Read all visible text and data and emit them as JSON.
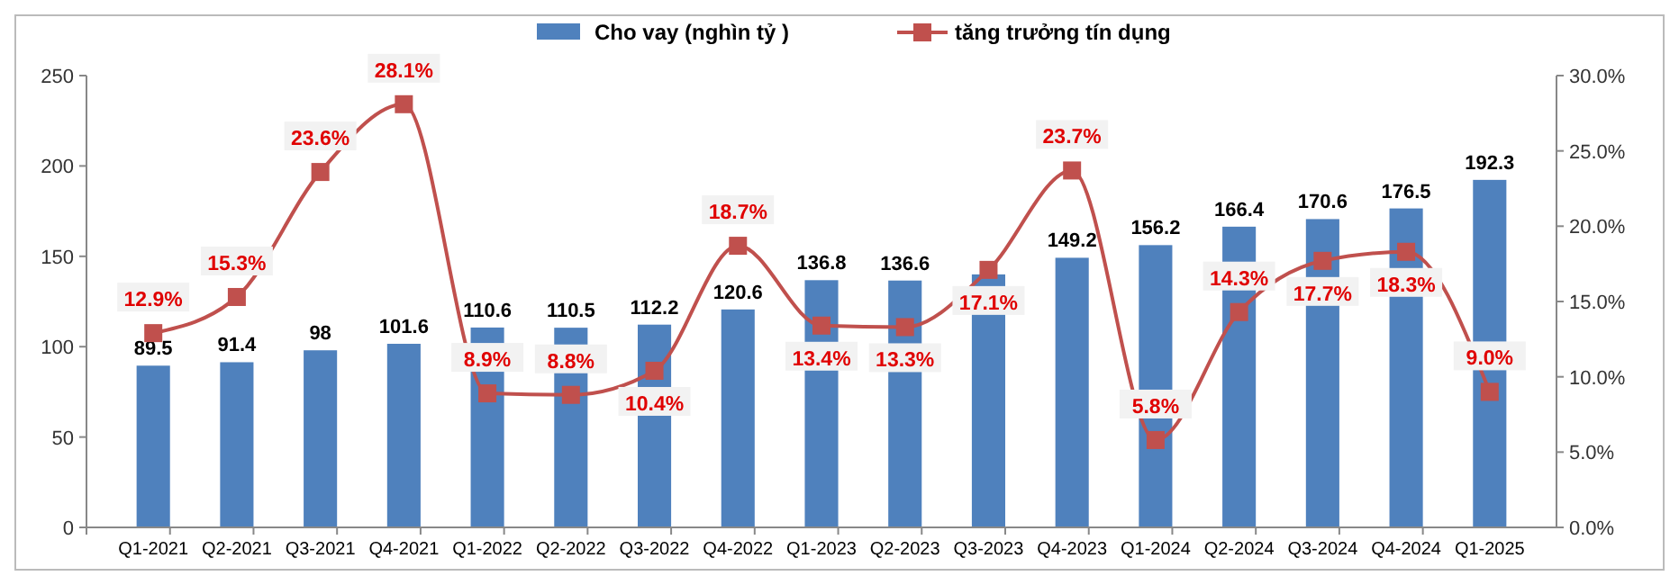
{
  "chart_data": {
    "type": "bar",
    "categories": [
      "Q1-2021",
      "Q2-2021",
      "Q3-2021",
      "Q4-2021",
      "Q1-2022",
      "Q2-2022",
      "Q3-2022",
      "Q4-2022",
      "Q1-2023",
      "Q2-2023",
      "Q3-2023",
      "Q4-2023",
      "Q1-2024",
      "Q2-2024",
      "Q3-2024",
      "Q4-2024",
      "Q1-2025"
    ],
    "series": [
      {
        "name": "Cho vay (nghìn tỷ )",
        "color": "#4f81bd",
        "values": [
          89.5,
          91.4,
          98,
          101.6,
          110.6,
          110.5,
          112.2,
          120.6,
          136.8,
          136.6,
          140,
          149.2,
          156.2,
          166.4,
          170.6,
          176.5,
          192.3
        ],
        "value_labels": [
          "89.5",
          "91.4",
          "98",
          "101.6",
          "110.6",
          "110.5",
          "112.2",
          "120.6",
          "136.8",
          "136.6",
          null,
          "149.2",
          "156.2",
          "166.4",
          "170.6",
          "176.5",
          "192.3"
        ]
      },
      {
        "name": "tăng trưởng tín dụng",
        "type": "line",
        "axis": "y2",
        "color": "#c0504d",
        "marker": "square",
        "values": [
          12.9,
          15.3,
          23.6,
          28.1,
          8.9,
          8.8,
          10.4,
          18.7,
          13.4,
          13.3,
          17.1,
          23.7,
          5.8,
          14.3,
          17.7,
          18.3,
          9.0
        ],
        "value_labels": [
          "12.9%",
          "15.3%",
          "23.6%",
          "28.1%",
          "8.9%",
          "8.8%",
          "10.4%",
          "18.7%",
          "13.4%",
          "13.3%",
          "17.1%",
          "23.7%",
          "5.8%",
          "14.3%",
          "17.7%",
          "18.3%",
          "9.0%"
        ]
      }
    ],
    "ylim": [
      0,
      250
    ],
    "yticks": [
      0,
      50,
      100,
      150,
      200,
      250
    ],
    "y2lim": [
      0,
      30
    ],
    "y2ticks": [
      {
        "value": 0,
        "label": "0.0%"
      },
      {
        "value": 5,
        "label": "5.0%"
      },
      {
        "value": 10,
        "label": "10.0%"
      },
      {
        "value": 15,
        "label": "15.0%"
      },
      {
        "value": 20,
        "label": "20.0%"
      },
      {
        "value": 25,
        "label": "25.0%"
      },
      {
        "value": 30,
        "label": "30.0%"
      }
    ],
    "legend": "top",
    "grid": false
  }
}
